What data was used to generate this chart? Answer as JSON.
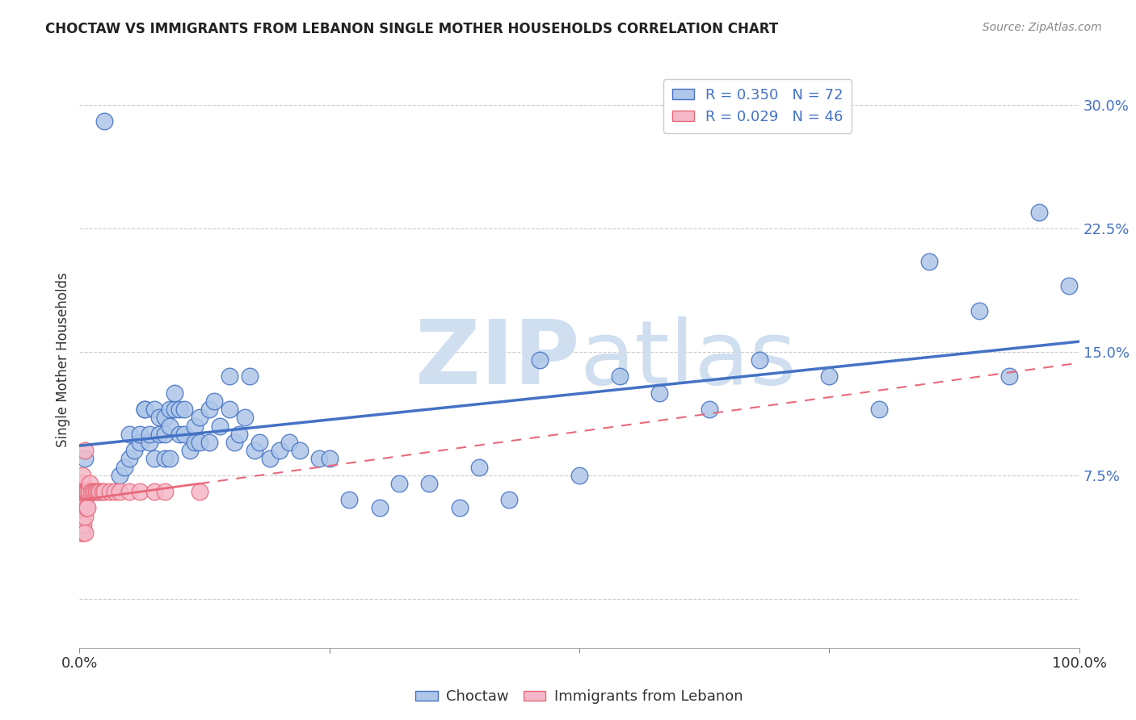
{
  "title": "CHOCTAW VS IMMIGRANTS FROM LEBANON SINGLE MOTHER HOUSEHOLDS CORRELATION CHART",
  "source": "Source: ZipAtlas.com",
  "ylabel": "Single Mother Households",
  "xlabel": "",
  "xlim": [
    0,
    1.0
  ],
  "ylim": [
    -0.03,
    0.32
  ],
  "yticks": [
    0.0,
    0.075,
    0.15,
    0.225,
    0.3
  ],
  "ytick_labels": [
    "",
    "7.5%",
    "15.0%",
    "22.5%",
    "30.0%"
  ],
  "xticks": [
    0.0,
    0.25,
    0.5,
    0.75,
    1.0
  ],
  "xtick_labels": [
    "0.0%",
    "",
    "",
    "",
    "100.0%"
  ],
  "legend_R1": "R = 0.350",
  "legend_N1": "N = 72",
  "legend_R2": "R = 0.029",
  "legend_N2": "N = 46",
  "color_choctaw": "#aec6e8",
  "color_lebanon": "#f5b8c8",
  "color_choctaw_line": "#4472c4",
  "color_lebanon_line": "#e8697a",
  "watermark_zip": "ZIP",
  "watermark_atlas": "atlas",
  "watermark_color": "#d0dff0",
  "background_color": "#ffffff",
  "grid_color": "#cccccc",
  "choctaw_x": [
    0.005,
    0.025,
    0.04,
    0.045,
    0.05,
    0.05,
    0.055,
    0.06,
    0.06,
    0.065,
    0.065,
    0.07,
    0.07,
    0.075,
    0.075,
    0.08,
    0.08,
    0.085,
    0.085,
    0.085,
    0.09,
    0.09,
    0.09,
    0.095,
    0.095,
    0.1,
    0.1,
    0.105,
    0.105,
    0.11,
    0.115,
    0.115,
    0.12,
    0.12,
    0.13,
    0.13,
    0.135,
    0.14,
    0.15,
    0.15,
    0.155,
    0.16,
    0.165,
    0.17,
    0.175,
    0.18,
    0.19,
    0.2,
    0.21,
    0.22,
    0.24,
    0.25,
    0.27,
    0.3,
    0.32,
    0.35,
    0.38,
    0.4,
    0.43,
    0.46,
    0.5,
    0.54,
    0.58,
    0.63,
    0.68,
    0.75,
    0.8,
    0.85,
    0.9,
    0.93,
    0.96,
    0.99
  ],
  "choctaw_y": [
    0.085,
    0.29,
    0.075,
    0.08,
    0.085,
    0.1,
    0.09,
    0.095,
    0.1,
    0.115,
    0.115,
    0.095,
    0.1,
    0.115,
    0.085,
    0.1,
    0.11,
    0.1,
    0.11,
    0.085,
    0.105,
    0.115,
    0.085,
    0.115,
    0.125,
    0.1,
    0.115,
    0.1,
    0.115,
    0.09,
    0.095,
    0.105,
    0.095,
    0.11,
    0.095,
    0.115,
    0.12,
    0.105,
    0.135,
    0.115,
    0.095,
    0.1,
    0.11,
    0.135,
    0.09,
    0.095,
    0.085,
    0.09,
    0.095,
    0.09,
    0.085,
    0.085,
    0.06,
    0.055,
    0.07,
    0.07,
    0.055,
    0.08,
    0.06,
    0.145,
    0.075,
    0.135,
    0.125,
    0.115,
    0.145,
    0.135,
    0.115,
    0.205,
    0.175,
    0.135,
    0.235,
    0.19
  ],
  "lebanon_x": [
    0.002,
    0.002,
    0.002,
    0.002,
    0.002,
    0.002,
    0.002,
    0.003,
    0.003,
    0.003,
    0.003,
    0.003,
    0.003,
    0.003,
    0.004,
    0.004,
    0.004,
    0.005,
    0.005,
    0.005,
    0.005,
    0.005,
    0.006,
    0.007,
    0.007,
    0.008,
    0.008,
    0.009,
    0.009,
    0.01,
    0.012,
    0.013,
    0.015,
    0.017,
    0.018,
    0.02,
    0.023,
    0.025,
    0.03,
    0.035,
    0.04,
    0.05,
    0.06,
    0.075,
    0.085,
    0.12
  ],
  "lebanon_y": [
    0.04,
    0.045,
    0.05,
    0.055,
    0.06,
    0.065,
    0.07,
    0.04,
    0.05,
    0.055,
    0.065,
    0.065,
    0.07,
    0.075,
    0.045,
    0.055,
    0.065,
    0.04,
    0.05,
    0.06,
    0.065,
    0.09,
    0.065,
    0.055,
    0.065,
    0.055,
    0.065,
    0.065,
    0.065,
    0.07,
    0.065,
    0.065,
    0.065,
    0.065,
    0.065,
    0.065,
    0.065,
    0.065,
    0.065,
    0.065,
    0.065,
    0.065,
    0.065,
    0.065,
    0.065,
    0.065
  ]
}
